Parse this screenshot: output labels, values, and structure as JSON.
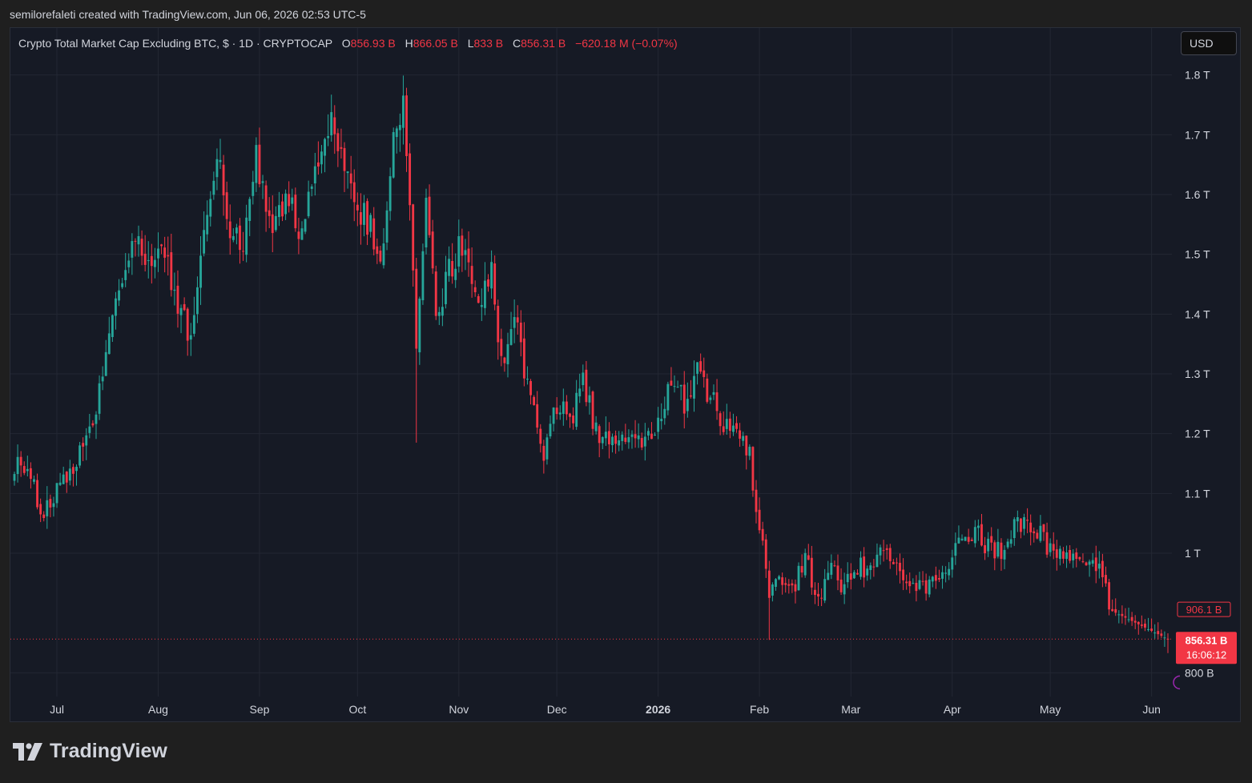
{
  "header": {
    "credit": "semilorefaleti created with TradingView.com, Jun 06, 2026 02:53 UTC-5"
  },
  "legend": {
    "symbol": "Crypto Total Market Cap Excluding BTC, $ · 1D · CRYPTOCAP",
    "open_label": "O",
    "open": "856.93 B",
    "high_label": "H",
    "high": "866.05 B",
    "low_label": "L",
    "low": "833 B",
    "close_label": "C",
    "close": "856.31 B",
    "change": "−620.18 M (−0.07%)"
  },
  "currency_button": {
    "label": "USD"
  },
  "price_axis": {
    "ticks": [
      {
        "label": "1.8 T",
        "value": 1800
      },
      {
        "label": "1.7 T",
        "value": 1700
      },
      {
        "label": "1.6 T",
        "value": 1600
      },
      {
        "label": "1.5 T",
        "value": 1500
      },
      {
        "label": "1.4 T",
        "value": 1400
      },
      {
        "label": "1.3 T",
        "value": 1300
      },
      {
        "label": "1.2 T",
        "value": 1200
      },
      {
        "label": "1.1 T",
        "value": 1100
      },
      {
        "label": "1 T",
        "value": 1000
      },
      {
        "label": "800 B",
        "value": 800
      }
    ],
    "marker_level": {
      "label": "906.1 B",
      "value": 906.1
    },
    "last_price": {
      "label": "856.31 B",
      "countdown": "16:06:12",
      "value": 856.31
    }
  },
  "time_axis": {
    "ticks": [
      {
        "label": "Jul",
        "day": 13,
        "bold": false
      },
      {
        "label": "Aug",
        "day": 44,
        "bold": false
      },
      {
        "label": "Sep",
        "day": 75,
        "bold": false
      },
      {
        "label": "Oct",
        "day": 105,
        "bold": false
      },
      {
        "label": "Nov",
        "day": 136,
        "bold": false
      },
      {
        "label": "Dec",
        "day": 166,
        "bold": false
      },
      {
        "label": "2026",
        "day": 197,
        "bold": true
      },
      {
        "label": "Feb",
        "day": 228,
        "bold": false
      },
      {
        "label": "Mar",
        "day": 256,
        "bold": false
      },
      {
        "label": "Apr",
        "day": 287,
        "bold": false
      },
      {
        "label": "May",
        "day": 317,
        "bold": false
      },
      {
        "label": "Jun",
        "day": 348,
        "bold": false
      }
    ]
  },
  "colors": {
    "up": "#26a69a",
    "down": "#f23645",
    "grid": "#232733",
    "axis_text": "#d1d4dc",
    "background": "#161a25"
  },
  "brand": {
    "name": "TradingView"
  },
  "chart_data": {
    "type": "candlestick",
    "title": "Crypto Total Market Cap Excluding BTC, $ · 1D · CRYPTOCAP",
    "x_unit": "day index (daily candles, 18 Jun 2025 – 6 Jun 2026)",
    "y_unit": "billion USD",
    "ylim": [
      760,
      1850
    ],
    "grid": true,
    "close_anchors": [
      [
        0,
        1150
      ],
      [
        5,
        1130
      ],
      [
        9,
        1060
      ],
      [
        13,
        1110
      ],
      [
        18,
        1140
      ],
      [
        24,
        1210
      ],
      [
        28,
        1340
      ],
      [
        33,
        1450
      ],
      [
        38,
        1540
      ],
      [
        42,
        1460
      ],
      [
        46,
        1510
      ],
      [
        50,
        1400
      ],
      [
        54,
        1370
      ],
      [
        58,
        1520
      ],
      [
        62,
        1660
      ],
      [
        66,
        1540
      ],
      [
        70,
        1520
      ],
      [
        74,
        1670
      ],
      [
        79,
        1530
      ],
      [
        83,
        1600
      ],
      [
        88,
        1540
      ],
      [
        93,
        1650
      ],
      [
        97,
        1730
      ],
      [
        101,
        1660
      ],
      [
        105,
        1580
      ],
      [
        109,
        1540
      ],
      [
        113,
        1500
      ],
      [
        115,
        1640
      ],
      [
        117,
        1720
      ],
      [
        119,
        1740
      ],
      [
        121,
        1610
      ],
      [
        123,
        1360
      ],
      [
        126,
        1580
      ],
      [
        129,
        1400
      ],
      [
        133,
        1470
      ],
      [
        138,
        1530
      ],
      [
        142,
        1420
      ],
      [
        146,
        1470
      ],
      [
        149,
        1320
      ],
      [
        153,
        1400
      ],
      [
        156,
        1300
      ],
      [
        159,
        1250
      ],
      [
        162,
        1170
      ],
      [
        166,
        1250
      ],
      [
        170,
        1220
      ],
      [
        174,
        1280
      ],
      [
        178,
        1210
      ],
      [
        182,
        1180
      ],
      [
        186,
        1190
      ],
      [
        190,
        1200
      ],
      [
        193,
        1180
      ],
      [
        197,
        1210
      ],
      [
        201,
        1300
      ],
      [
        205,
        1250
      ],
      [
        209,
        1310
      ],
      [
        213,
        1260
      ],
      [
        217,
        1210
      ],
      [
        221,
        1200
      ],
      [
        225,
        1160
      ],
      [
        228,
        1040
      ],
      [
        231,
        935
      ],
      [
        234,
        960
      ],
      [
        238,
        940
      ],
      [
        242,
        990
      ],
      [
        246,
        930
      ],
      [
        250,
        970
      ],
      [
        254,
        940
      ],
      [
        258,
        980
      ],
      [
        262,
        970
      ],
      [
        266,
        1020
      ],
      [
        270,
        980
      ],
      [
        274,
        960
      ],
      [
        278,
        940
      ],
      [
        282,
        960
      ],
      [
        286,
        990
      ],
      [
        290,
        1020
      ],
      [
        294,
        1040
      ],
      [
        298,
        1010
      ],
      [
        302,
        1000
      ],
      [
        306,
        1040
      ],
      [
        310,
        1060
      ],
      [
        314,
        1030
      ],
      [
        318,
        990
      ],
      [
        322,
        1000
      ],
      [
        326,
        980
      ],
      [
        330,
        1000
      ],
      [
        333,
        960
      ],
      [
        335,
        906
      ]
    ],
    "last": {
      "open": 856.93,
      "high": 866.05,
      "low": 833,
      "close": 856.31
    }
  }
}
